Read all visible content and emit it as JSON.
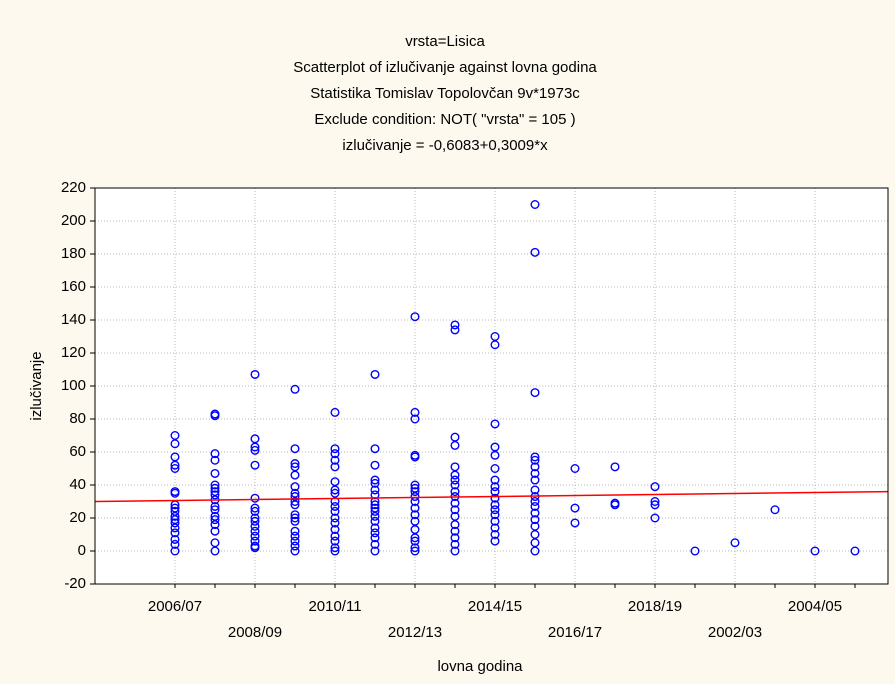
{
  "chart_data": {
    "type": "scatter",
    "title": [
      "vrsta=Lisica",
      "Scatterplot of izlučivanje against lovna godina",
      "Statistika Tomislav Topolovčan 9v*1973c",
      "Exclude condition: NOT( \"vrsta\" = 105 )",
      "izlučivanje = -0,6083+0,3009*x"
    ],
    "x_label": "lovna godina",
    "y_label": "izlučivanje",
    "categories": [
      "2006/07",
      null,
      "2008/09",
      null,
      "2010/11",
      null,
      "2012/13",
      null,
      "2014/15",
      null,
      "2016/17",
      null,
      "2018/19",
      null,
      "2002/03",
      null,
      "2004/05",
      null
    ],
    "color": "#0000ff",
    "values": [
      [
        70,
        65,
        57,
        52,
        50,
        36,
        35,
        28,
        26,
        24,
        21,
        19,
        17,
        14,
        11,
        7,
        4,
        0
      ],
      [
        83,
        82,
        59,
        55,
        47,
        40,
        38,
        36,
        34,
        31,
        27,
        25,
        21,
        19,
        16,
        12,
        5,
        0
      ],
      [
        107,
        68,
        63,
        61,
        52,
        32,
        26,
        24,
        20,
        18,
        15,
        12,
        9,
        6,
        3,
        2
      ],
      [
        98,
        62,
        53,
        51,
        46,
        39,
        35,
        33,
        30,
        28,
        22,
        20,
        18,
        12,
        9,
        6,
        3,
        0
      ],
      [
        84,
        62,
        59,
        55,
        51,
        42,
        37,
        35,
        30,
        27,
        24,
        20,
        17,
        13,
        9,
        6,
        2,
        0
      ],
      [
        107,
        62,
        52,
        43,
        41,
        37,
        34,
        30,
        28,
        26,
        24,
        21,
        18,
        14,
        11,
        8,
        4,
        0
      ],
      [
        142,
        84,
        80,
        58,
        57,
        40,
        38,
        36,
        33,
        30,
        26,
        22,
        18,
        13,
        8,
        6,
        2,
        0
      ],
      [
        137,
        134,
        69,
        64,
        51,
        46,
        43,
        40,
        36,
        33,
        29,
        25,
        21,
        16,
        12,
        8,
        4,
        0
      ],
      [
        130,
        125,
        77,
        63,
        58,
        50,
        43,
        39,
        36,
        32,
        28,
        25,
        22,
        18,
        14,
        10,
        6
      ],
      [
        210,
        181,
        96,
        57,
        55,
        51,
        47,
        43,
        37,
        33,
        30,
        27,
        23,
        19,
        15,
        10,
        5,
        0
      ],
      [
        50,
        26,
        17
      ],
      [
        51,
        29,
        28
      ],
      [
        39,
        30,
        28,
        20
      ],
      [
        0
      ],
      [
        5
      ],
      [
        25
      ],
      [
        0
      ],
      [
        0
      ]
    ],
    "trend": {
      "color": "#ff0000",
      "values": [
        30,
        36
      ]
    },
    "ylim": [
      -20,
      220
    ],
    "yticks": [
      -20,
      0,
      20,
      40,
      60,
      80,
      100,
      120,
      140,
      160,
      180,
      200,
      220
    ],
    "grid": true
  }
}
